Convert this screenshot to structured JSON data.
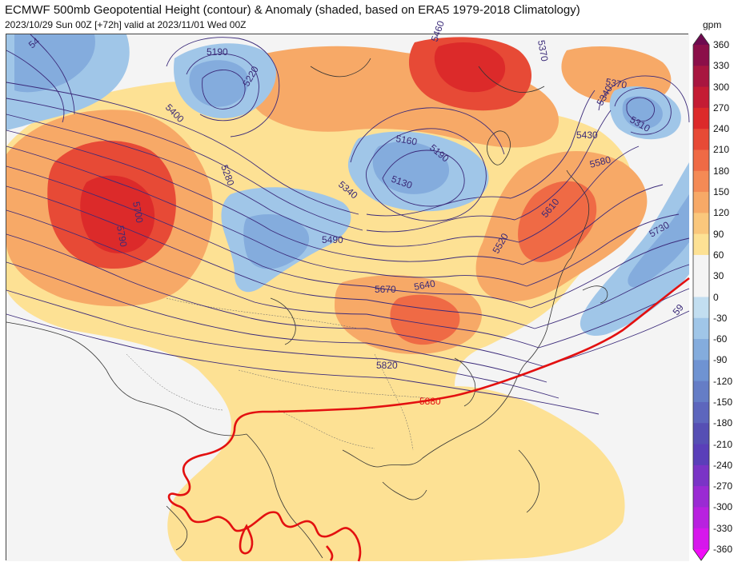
{
  "header": {
    "title": "ECMWF 500mb Geopotential Height (contour) & Anomaly (shaded, based on ERA5 1979-2018 Climatology)",
    "subtitle": "2023/10/29 Sun 00Z [+72h] valid at 2023/11/01 Wed 00Z"
  },
  "colorbar": {
    "unit": "gpm",
    "levels": [
      "360",
      "330",
      "300",
      "270",
      "240",
      "210",
      "180",
      "150",
      "120",
      "90",
      "60",
      "30",
      "0",
      "-30",
      "-60",
      "-90",
      "-120",
      "-150",
      "-180",
      "-210",
      "-240",
      "-270",
      "-300",
      "-330",
      "-360"
    ],
    "colors": [
      "#6e0a4f",
      "#8b0f49",
      "#a81640",
      "#c41c34",
      "#dc2a2a",
      "#e74a36",
      "#ef6a45",
      "#f48a55",
      "#f7a967",
      "#fac77c",
      "#fde194",
      "#f4f4f4",
      "#f4f4f4",
      "#c2def0",
      "#a0c6e8",
      "#84acdd",
      "#6f93d2",
      "#657dc6",
      "#5d66bd",
      "#564fb4",
      "#5a3fb9",
      "#7a34c6",
      "#9a2bd3",
      "#b821df",
      "#d617ec",
      "#f10cf8"
    ]
  },
  "contour_labels": [
    {
      "text": "5190"
    },
    {
      "text": "5220"
    },
    {
      "text": "5400"
    },
    {
      "text": "5160"
    },
    {
      "text": "5190"
    },
    {
      "text": "5130"
    },
    {
      "text": "5280"
    },
    {
      "text": "5340"
    },
    {
      "text": "5700"
    },
    {
      "text": "5790"
    },
    {
      "text": "5490"
    },
    {
      "text": "5670"
    },
    {
      "text": "5640"
    },
    {
      "text": "5820"
    },
    {
      "text": "5880"
    },
    {
      "text": "5370"
    },
    {
      "text": "5340"
    },
    {
      "text": "5370"
    },
    {
      "text": "5310"
    },
    {
      "text": "5430"
    },
    {
      "text": "5580"
    },
    {
      "text": "5610"
    },
    {
      "text": "5520"
    },
    {
      "text": "5730"
    },
    {
      "text": "59"
    },
    {
      "text": "5460"
    },
    {
      "text": "54"
    }
  ]
}
